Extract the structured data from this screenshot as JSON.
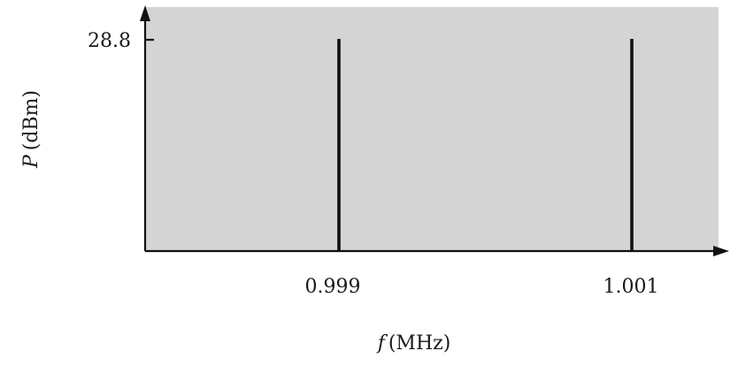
{
  "chart_data": {
    "type": "bar",
    "x": [
      0.999,
      1.001
    ],
    "values": [
      28.8,
      28.8
    ],
    "x_tick_labels": [
      "0.999",
      "1.001"
    ],
    "y_tick_labels": [
      "28.8"
    ],
    "xlabel_italic": "f",
    "xlabel_unit": "(MHz)",
    "ylabel_italic": "P",
    "ylabel_unit": "(dBm)",
    "grid": false,
    "colors": {
      "plot_background": "#d4d4d4",
      "line": "#111111"
    }
  }
}
